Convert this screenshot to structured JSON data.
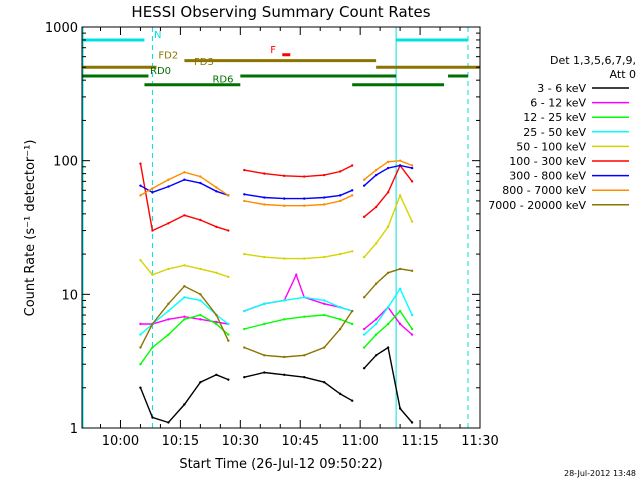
{
  "chart_data": {
    "type": "line",
    "title": "HESSI Observing Summary Count Rates",
    "xlabel": "Start Time (26-Jul-12 09:50:22)",
    "ylabel": "Count Rate (s⁻¹ detector⁻¹)",
    "yscale": "log",
    "ylim": [
      1,
      1000
    ],
    "yticks": [
      {
        "value": 1,
        "label": "1"
      },
      {
        "value": 10,
        "label": "10"
      },
      {
        "value": 100,
        "label": "100"
      },
      {
        "value": 1000,
        "label": "1000"
      }
    ],
    "xlim": [
      "09:50:22",
      "11:30:00"
    ],
    "xticks": [
      {
        "value": "10:00",
        "label": "10:00"
      },
      {
        "value": "10:15",
        "label": "10:15"
      },
      {
        "value": "10:30",
        "label": "10:30"
      },
      {
        "value": "10:45",
        "label": "10:45"
      },
      {
        "value": "11:00",
        "label": "11:00"
      },
      {
        "value": "11:15",
        "label": "11:15"
      },
      {
        "value": "11:30",
        "label": "11:30"
      }
    ],
    "legend_header": [
      "Det 1,3,5,6,7,9,",
      "Att 0"
    ],
    "legend_position": "right",
    "footer_date": "28-Jul-2012 13:48",
    "coverage_intervals": [
      [
        "10:05",
        "10:27"
      ],
      [
        "10:30",
        "10:58"
      ],
      [
        "11:01",
        "11:13"
      ]
    ],
    "series": [
      {
        "name": "3 - 6 keV",
        "color": "#000000",
        "x": [
          "10:05",
          "10:08",
          "10:12",
          "10:16",
          "10:20",
          "10:24",
          "10:27",
          "10:31",
          "10:36",
          "10:41",
          "10:46",
          "10:51",
          "10:55",
          "10:58",
          "11:01",
          "11:04",
          "11:07",
          "11:10",
          "11:13"
        ],
        "y": [
          2.0,
          1.2,
          1.1,
          1.5,
          2.2,
          2.5,
          2.3,
          2.4,
          2.6,
          2.5,
          2.4,
          2.2,
          1.8,
          1.6,
          2.8,
          3.5,
          4.0,
          1.4,
          1.1
        ]
      },
      {
        "name": "6 - 12 keV",
        "color": "#ff00ff",
        "x": [
          "10:05",
          "10:08",
          "10:12",
          "10:16",
          "10:20",
          "10:24",
          "10:27",
          "10:31",
          "10:36",
          "10:41",
          "10:44",
          "10:46",
          "10:51",
          "10:55",
          "10:58",
          "11:01",
          "11:04",
          "11:07",
          "11:10",
          "11:13"
        ],
        "y": [
          6.0,
          6.0,
          6.5,
          6.8,
          6.5,
          6.2,
          6.0,
          7.5,
          8.5,
          9.0,
          14.0,
          9.5,
          8.5,
          8.0,
          7.5,
          5.5,
          6.5,
          8.0,
          6.0,
          5.0
        ]
      },
      {
        "name": "12 - 25 keV",
        "color": "#00ff00",
        "x": [
          "10:05",
          "10:08",
          "10:12",
          "10:16",
          "10:20",
          "10:24",
          "10:27",
          "10:31",
          "10:36",
          "10:41",
          "10:46",
          "10:51",
          "10:55",
          "10:58",
          "11:01",
          "11:04",
          "11:07",
          "11:10",
          "11:13"
        ],
        "y": [
          3.0,
          4.0,
          5.0,
          6.5,
          7.0,
          6.0,
          5.0,
          5.5,
          6.0,
          6.5,
          6.8,
          7.0,
          6.5,
          6.0,
          4.0,
          5.0,
          6.0,
          7.5,
          5.5
        ]
      },
      {
        "name": "25 - 50 keV",
        "color": "#00ffff",
        "x": [
          "10:05",
          "10:08",
          "10:12",
          "10:16",
          "10:20",
          "10:24",
          "10:27",
          "10:31",
          "10:36",
          "10:41",
          "10:46",
          "10:51",
          "10:55",
          "10:58",
          "11:01",
          "11:04",
          "11:07",
          "11:10",
          "11:13"
        ],
        "y": [
          5.0,
          6.0,
          7.5,
          9.5,
          9.0,
          7.0,
          6.0,
          7.5,
          8.5,
          9.0,
          9.5,
          9.0,
          8.0,
          7.5,
          5.0,
          6.0,
          8.0,
          11.0,
          7.0
        ]
      },
      {
        "name": "50 - 100 keV",
        "color": "#d4d400",
        "x": [
          "10:05",
          "10:08",
          "10:12",
          "10:16",
          "10:20",
          "10:24",
          "10:27",
          "10:31",
          "10:36",
          "10:41",
          "10:46",
          "10:51",
          "10:55",
          "10:58",
          "11:01",
          "11:04",
          "11:07",
          "11:10",
          "11:13"
        ],
        "y": [
          18.0,
          14.0,
          15.5,
          16.5,
          15.5,
          14.5,
          13.5,
          20.0,
          19.0,
          18.5,
          18.5,
          19.0,
          20.0,
          21.0,
          19.0,
          24.0,
          32.0,
          55.0,
          35.0
        ]
      },
      {
        "name": "100 - 300 keV",
        "color": "#ff0000",
        "x": [
          "10:05",
          "10:08",
          "10:12",
          "10:16",
          "10:20",
          "10:24",
          "10:27",
          "10:31",
          "10:36",
          "10:41",
          "10:46",
          "10:51",
          "10:55",
          "10:58",
          "11:01",
          "11:04",
          "11:07",
          "11:10",
          "11:13"
        ],
        "y": [
          95.0,
          30.0,
          34.0,
          39.0,
          36.0,
          32.0,
          30.0,
          85.0,
          80.0,
          77.0,
          76.0,
          78.0,
          83.0,
          92.0,
          38.0,
          45.0,
          58.0,
          92.0,
          70.0
        ]
      },
      {
        "name": "300 - 800 keV",
        "color": "#0000ff",
        "x": [
          "10:05",
          "10:08",
          "10:12",
          "10:16",
          "10:20",
          "10:24",
          "10:27",
          "10:31",
          "10:36",
          "10:41",
          "10:46",
          "10:51",
          "10:55",
          "10:58",
          "11:01",
          "11:04",
          "11:07",
          "11:10",
          "11:13"
        ],
        "y": [
          65.0,
          58.0,
          64.0,
          72.0,
          68.0,
          59.0,
          55.0,
          56.0,
          53.0,
          52.0,
          52.0,
          53.0,
          55.0,
          60.0,
          65.0,
          78.0,
          88.0,
          92.0,
          88.0
        ]
      },
      {
        "name": "800 - 7000 keV",
        "color": "#ff8c00",
        "x": [
          "10:05",
          "10:08",
          "10:12",
          "10:16",
          "10:20",
          "10:24",
          "10:27",
          "10:31",
          "10:36",
          "10:41",
          "10:46",
          "10:51",
          "10:55",
          "10:58",
          "11:01",
          "11:04",
          "11:07",
          "11:10",
          "11:13"
        ],
        "y": [
          55.0,
          62.0,
          72.0,
          82.0,
          76.0,
          63.0,
          55.0,
          50.0,
          47.0,
          46.0,
          46.0,
          47.0,
          50.0,
          55.0,
          72.0,
          85.0,
          98.0,
          100.0,
          92.0
        ]
      },
      {
        "name": "7000 - 20000 keV",
        "color": "#8b7500",
        "x": [
          "10:05",
          "10:08",
          "10:12",
          "10:16",
          "10:20",
          "10:24",
          "10:27",
          "10:31",
          "10:36",
          "10:41",
          "10:46",
          "10:51",
          "10:55",
          "10:58",
          "11:01",
          "11:04",
          "11:07",
          "11:10",
          "11:13"
        ],
        "y": [
          4.0,
          6.0,
          8.5,
          11.5,
          10.0,
          7.0,
          4.5,
          4.0,
          3.5,
          3.4,
          3.5,
          4.0,
          5.5,
          7.5,
          9.5,
          12.0,
          14.5,
          15.5,
          15.0
        ]
      }
    ],
    "state_bars": [
      {
        "label": "N",
        "color": "#00e0e0",
        "y": 800,
        "segments": [
          [
            "09:50:22",
            "10:06"
          ],
          [
            "11:09",
            "11:27"
          ]
        ]
      },
      {
        "label": "F",
        "color": "#ff0000",
        "y": 620,
        "segments": [
          [
            "10:40:30",
            "10:42:30"
          ]
        ]
      },
      {
        "label": "FD2",
        "color": "#8b7500",
        "y": 560,
        "segments": [
          [
            "10:16",
            "11:04"
          ]
        ]
      },
      {
        "label": "FD3",
        "color": "#8b7500",
        "y": 500,
        "segments": [
          [
            "09:50:22",
            "10:09"
          ],
          [
            "11:04",
            "11:30"
          ]
        ]
      },
      {
        "label": "RD0",
        "color": "#007000",
        "y": 430,
        "segments": [
          [
            "09:50:22",
            "10:07"
          ],
          [
            "10:30",
            "11:09"
          ],
          [
            "11:22",
            "11:27"
          ]
        ]
      },
      {
        "label": "RD6",
        "color": "#007000",
        "y": 370,
        "segments": [
          [
            "10:06",
            "10:30"
          ],
          [
            "10:58",
            "11:21"
          ]
        ]
      }
    ],
    "vlines": [
      {
        "x": "10:08",
        "color": "#00e0e0",
        "style": "dashed"
      },
      {
        "x": "11:09",
        "color": "#00e0e0",
        "style": "solid"
      },
      {
        "x": "11:27",
        "color": "#00e0e0",
        "style": "dashed"
      }
    ]
  }
}
